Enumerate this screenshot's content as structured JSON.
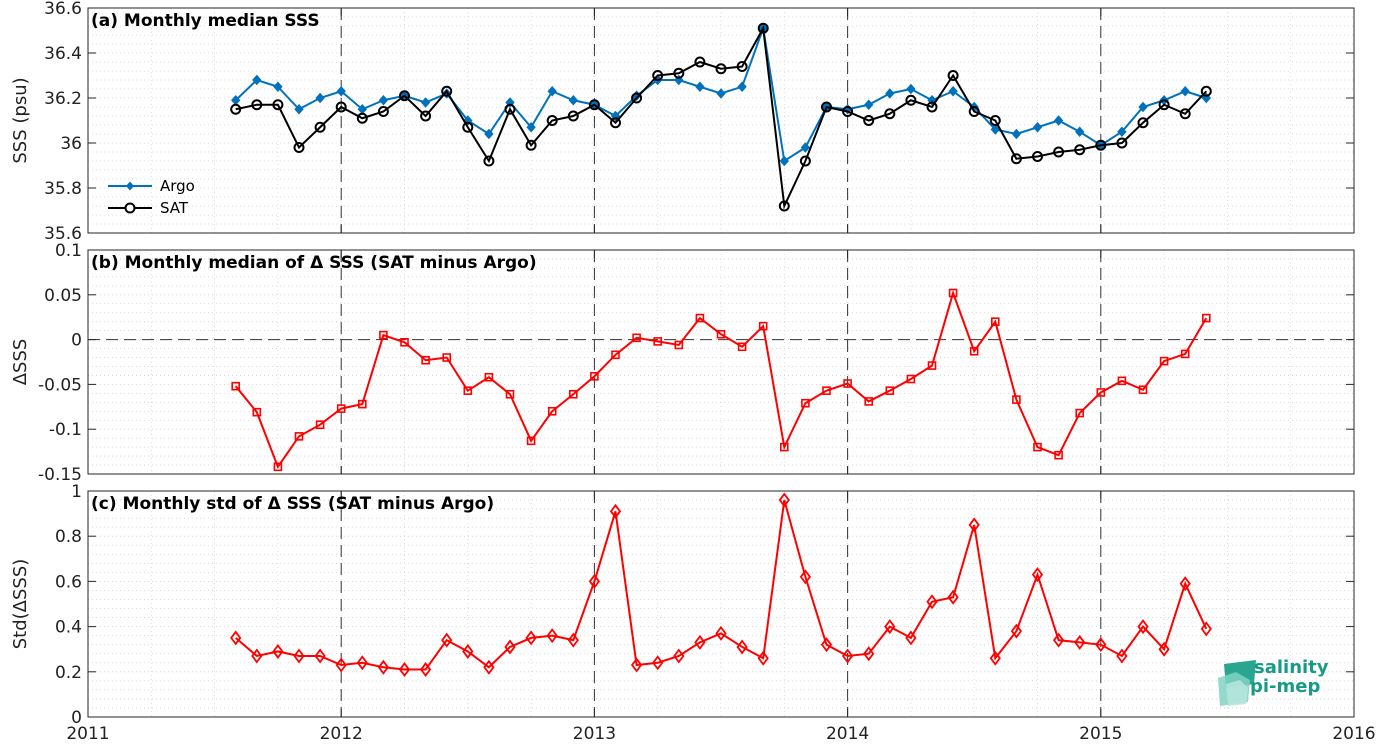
{
  "figure": {
    "x_ticks": [
      "2011",
      "2012",
      "2013",
      "2014",
      "2015",
      "2016"
    ],
    "x_range": [
      2011,
      2016
    ],
    "vertical_dashed_years": [
      2012,
      2013,
      2014,
      2015
    ],
    "logo": {
      "line1": "salinity",
      "line2": "pi-mep",
      "color": "#1a9a86"
    }
  },
  "chart_data": [
    {
      "type": "line",
      "panel": "a",
      "title": "(a) Monthly median SSS",
      "ylabel": "SSS (psu)",
      "ylim": [
        35.6,
        36.6
      ],
      "yticks": [
        35.6,
        35.8,
        36,
        36.2,
        36.4,
        36.6
      ],
      "ytick_labels": [
        "35.6",
        "35.8",
        "36",
        "36.2",
        "36.4",
        "36.6"
      ],
      "grid": true,
      "legend_position": "bottom-left",
      "x_start": "2011-08",
      "series": [
        {
          "name": "Argo",
          "color": "#0072bd",
          "marker": "diamond-filled",
          "values": [
            36.19,
            36.28,
            36.25,
            36.15,
            36.2,
            36.23,
            36.15,
            36.19,
            36.21,
            36.18,
            36.22,
            36.1,
            36.04,
            36.18,
            36.07,
            36.23,
            36.19,
            36.17,
            36.12,
            36.21,
            36.28,
            36.28,
            36.25,
            36.22,
            36.25,
            36.51,
            35.92,
            35.98,
            36.16,
            36.15,
            36.17,
            36.22,
            36.24,
            36.19,
            36.23,
            36.16,
            36.06,
            36.04,
            36.07,
            36.1,
            36.05,
            35.99,
            36.05,
            36.16,
            36.19,
            36.23,
            36.2
          ]
        },
        {
          "name": "SAT",
          "color": "#000000",
          "marker": "circle-open",
          "values": [
            36.15,
            36.17,
            36.17,
            35.98,
            36.07,
            36.16,
            36.11,
            36.14,
            36.21,
            36.12,
            36.23,
            36.07,
            35.92,
            36.15,
            35.99,
            36.1,
            36.12,
            36.17,
            36.09,
            36.2,
            36.3,
            36.31,
            36.36,
            36.33,
            36.34,
            36.51,
            35.72,
            35.92,
            36.16,
            36.14,
            36.1,
            36.13,
            36.19,
            36.16,
            36.3,
            36.14,
            36.1,
            35.93,
            35.94,
            35.96,
            35.97,
            35.99,
            36.0,
            36.09,
            36.17,
            36.13,
            36.23
          ]
        }
      ]
    },
    {
      "type": "line",
      "panel": "b",
      "title": "(b) Monthly median of Δ SSS (SAT minus Argo)",
      "ylabel": "ΔSSS",
      "ylim": [
        -0.15,
        0.1
      ],
      "yticks": [
        -0.15,
        -0.1,
        -0.05,
        0,
        0.05,
        0.1
      ],
      "ytick_labels": [
        "-0.15",
        "-0.1",
        "-0.05",
        "0",
        "0.05",
        "0.1"
      ],
      "zero_line": "dashed",
      "grid": true,
      "x_start": "2011-08",
      "series": [
        {
          "color": "#ff0000",
          "marker": "square-open",
          "values": [
            -0.052,
            -0.081,
            -0.142,
            -0.108,
            -0.095,
            -0.077,
            -0.072,
            0.005,
            -0.003,
            -0.023,
            -0.02,
            -0.057,
            -0.042,
            -0.061,
            -0.113,
            -0.08,
            -0.061,
            -0.041,
            -0.017,
            0.002,
            -0.002,
            -0.006,
            0.024,
            0.006,
            -0.008,
            0.015,
            -0.12,
            -0.071,
            -0.057,
            -0.049,
            -0.069,
            -0.057,
            -0.044,
            -0.029,
            0.052,
            -0.013,
            0.02,
            -0.067,
            -0.12,
            -0.129,
            -0.082,
            -0.059,
            -0.046,
            -0.056,
            -0.024,
            -0.016,
            0.024
          ]
        }
      ]
    },
    {
      "type": "line",
      "panel": "c",
      "title": "(c) Monthly std of Δ SSS (SAT minus Argo)",
      "ylabel": "Std(ΔSSS)",
      "ylim": [
        0,
        1
      ],
      "yticks": [
        0,
        0.2,
        0.4,
        0.6,
        0.8,
        1
      ],
      "ytick_labels": [
        "0",
        "0.2",
        "0.4",
        "0.6",
        "0.8",
        "1"
      ],
      "grid": true,
      "x_start": "2011-08",
      "series": [
        {
          "color": "#ff0000",
          "marker": "diamond-open",
          "values": [
            0.35,
            0.27,
            0.29,
            0.27,
            0.27,
            0.23,
            0.24,
            0.22,
            0.21,
            0.21,
            0.34,
            0.29,
            0.22,
            0.31,
            0.35,
            0.36,
            0.34,
            0.6,
            0.91,
            0.23,
            0.24,
            0.27,
            0.33,
            0.37,
            0.31,
            0.26,
            0.96,
            0.62,
            0.32,
            0.27,
            0.28,
            0.4,
            0.35,
            0.51,
            0.53,
            0.85,
            0.26,
            0.38,
            0.63,
            0.34,
            0.33,
            0.32,
            0.27,
            0.4,
            0.3,
            0.59,
            0.39
          ]
        }
      ]
    }
  ]
}
